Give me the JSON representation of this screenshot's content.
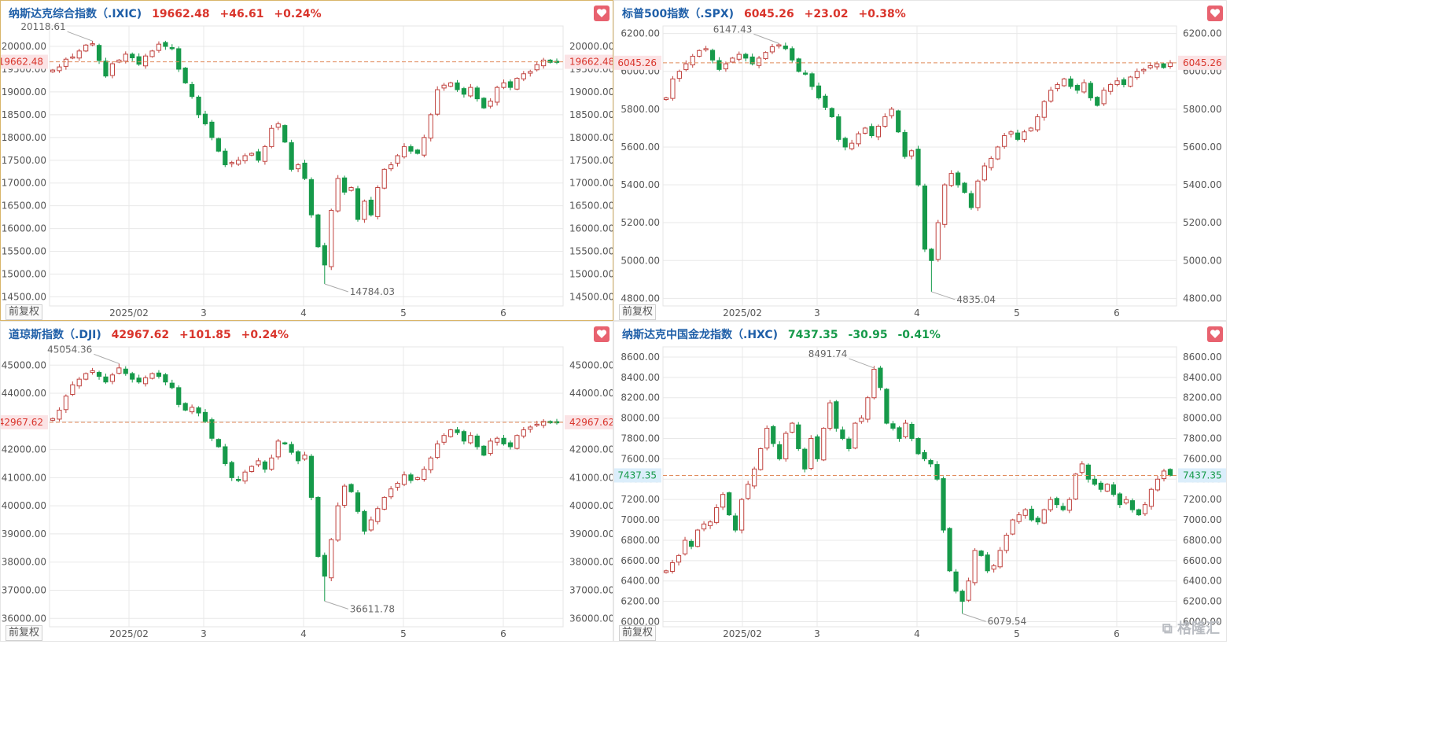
{
  "colors": {
    "up": "#c0423e",
    "down": "#169a4a",
    "ref": "#e08a5a",
    "grid": "#e8e8e8",
    "axis_text": "#555555",
    "up_label_bg": "#fbe3e5",
    "down_label_bg": "#dbeefb"
  },
  "watermark": "格隆汇",
  "adjust_label": "前复权",
  "panels": [
    {
      "id": "ixic",
      "name": "纳斯达克综合指数（.IXIC)",
      "price": "19662.48",
      "change": "+46.61",
      "pct": "+0.24%",
      "direction": "up",
      "last_label": "19662.48",
      "high_label": "20118.61",
      "low_label": "14784.03",
      "chart_data": {
        "type": "candlestick",
        "y_ticks": [
          "20000.00",
          "19500.00",
          "19000.00",
          "18500.00",
          "18000.00",
          "17500.00",
          "17000.00",
          "16500.00",
          "16000.00",
          "15500.00",
          "15000.00",
          "14500.00"
        ],
        "x_ticks": [
          "2025/02",
          "3",
          "4",
          "5",
          "6"
        ],
        "ylim": [
          14300,
          20450
        ],
        "last": 19662.48,
        "high": 20118.61,
        "low": 14784.03,
        "closes": [
          19480,
          19550,
          19720,
          19770,
          19900,
          20030,
          20060,
          19690,
          19350,
          19620,
          19700,
          19830,
          19750,
          19610,
          19790,
          19900,
          20050,
          20000,
          19950,
          19500,
          19200,
          18900,
          18500,
          18300,
          18000,
          17700,
          17400,
          17450,
          17500,
          17600,
          17650,
          17500,
          17800,
          18200,
          18300,
          17900,
          17300,
          17400,
          17100,
          16300,
          15600,
          15200,
          16400,
          17100,
          16800,
          16900,
          16200,
          16600,
          16300,
          16900,
          17300,
          17400,
          17600,
          17800,
          17700,
          17650,
          18000,
          18500,
          19050,
          19150,
          19200,
          19050,
          18950,
          19100,
          18850,
          18650,
          18800,
          19100,
          19200,
          19100,
          19300,
          19400,
          19450,
          19600,
          19700,
          19650,
          19662
        ]
      }
    },
    {
      "id": "spx",
      "name": "标普500指数（.SPX)",
      "price": "6045.26",
      "change": "+23.02",
      "pct": "+0.38%",
      "direction": "up",
      "last_label": "6045.26",
      "high_label": "6147.43",
      "low_label": "4835.04",
      "chart_data": {
        "type": "candlestick",
        "y_ticks": [
          "6200.00",
          "6000.00",
          "5800.00",
          "5600.00",
          "5400.00",
          "5200.00",
          "5000.00",
          "4800.00"
        ],
        "x_ticks": [
          "2025/02",
          "3",
          "4",
          "5",
          "6"
        ],
        "ylim": [
          4760,
          6240
        ],
        "last": 6045.26,
        "high": 6147.43,
        "low": 4835.04,
        "closes": [
          5860,
          5960,
          6000,
          6040,
          6080,
          6110,
          6120,
          6060,
          6010,
          6040,
          6070,
          6090,
          6070,
          6040,
          6070,
          6100,
          6130,
          6140,
          6120,
          6060,
          6000,
          5990,
          5920,
          5860,
          5810,
          5760,
          5640,
          5600,
          5620,
          5670,
          5700,
          5660,
          5710,
          5760,
          5800,
          5680,
          5550,
          5580,
          5400,
          5060,
          5000,
          5200,
          5400,
          5460,
          5400,
          5360,
          5280,
          5420,
          5500,
          5540,
          5600,
          5660,
          5680,
          5640,
          5680,
          5700,
          5760,
          5840,
          5900,
          5930,
          5960,
          5920,
          5900,
          5940,
          5860,
          5820,
          5900,
          5930,
          5950,
          5930,
          5970,
          6000,
          6010,
          6030,
          6040,
          6020,
          6045
        ]
      }
    },
    {
      "id": "dji",
      "name": "道琼斯指数（.DJI)",
      "price": "42967.62",
      "change": "+101.85",
      "pct": "+0.24%",
      "direction": "up",
      "last_label": "42967.62",
      "high_label": "45054.36",
      "low_label": "36611.78",
      "chart_data": {
        "type": "candlestick",
        "y_ticks": [
          "45000.00",
          "44000.00",
          "43000.00",
          "42000.00",
          "41000.00",
          "40000.00",
          "39000.00",
          "38000.00",
          "37000.00",
          "36000.00"
        ],
        "x_ticks": [
          "2025/02",
          "3",
          "4",
          "5",
          "6"
        ],
        "ylim": [
          35700,
          45650
        ],
        "last": 42967.62,
        "high": 45054.36,
        "low": 36611.78,
        "closes": [
          43100,
          43400,
          43900,
          44300,
          44500,
          44700,
          44800,
          44600,
          44400,
          44650,
          44900,
          44700,
          44500,
          44400,
          44550,
          44700,
          44600,
          44400,
          44200,
          43600,
          43400,
          43500,
          43300,
          43000,
          42400,
          42100,
          41500,
          41000,
          40900,
          41200,
          41400,
          41600,
          41300,
          41700,
          42300,
          42200,
          41900,
          41600,
          41800,
          40300,
          38200,
          37500,
          38800,
          40000,
          40700,
          40500,
          39800,
          39100,
          39500,
          39900,
          40300,
          40600,
          40800,
          41100,
          40900,
          41000,
          41300,
          41700,
          42200,
          42500,
          42700,
          42600,
          42300,
          42500,
          42100,
          41800,
          42300,
          42400,
          42200,
          42100,
          42500,
          42700,
          42800,
          42900,
          43000,
          42950,
          42967
        ]
      }
    },
    {
      "id": "hxc",
      "name": "纳斯达克中国金龙指数（.HXC)",
      "price": "7437.35",
      "change": "-30.95",
      "pct": "-0.41%",
      "direction": "down",
      "last_label": "7437.35",
      "high_label": "8491.74",
      "low_label": "6079.54",
      "chart_data": {
        "type": "candlestick",
        "y_ticks": [
          "8600.00",
          "8400.00",
          "8200.00",
          "8000.00",
          "7800.00",
          "7600.00",
          "7400.00",
          "7200.00",
          "7000.00",
          "6800.00",
          "6600.00",
          "6400.00",
          "6200.00",
          "6000.00"
        ],
        "x_ticks": [
          "2025/02",
          "3",
          "4",
          "5",
          "6"
        ],
        "ylim": [
          5950,
          8700
        ],
        "last": 7437.35,
        "high": 8491.74,
        "low": 6079.54,
        "closes": [
          6500,
          6580,
          6650,
          6800,
          6740,
          6900,
          6960,
          6980,
          7120,
          7250,
          7050,
          6900,
          7200,
          7350,
          7500,
          7700,
          7900,
          7750,
          7600,
          7850,
          7950,
          7700,
          7500,
          7800,
          7600,
          7900,
          8150,
          7900,
          7800,
          7700,
          7950,
          8000,
          8200,
          8480,
          8300,
          7950,
          7900,
          7800,
          7950,
          7800,
          7650,
          7600,
          7550,
          7400,
          6900,
          6500,
          6300,
          6200,
          6400,
          6700,
          6650,
          6500,
          6550,
          6700,
          6850,
          7000,
          7050,
          7100,
          7000,
          6980,
          7100,
          7200,
          7150,
          7100,
          7200,
          7450,
          7550,
          7400,
          7350,
          7300,
          7350,
          7250,
          7150,
          7200,
          7100,
          7050,
          7150,
          7300,
          7400,
          7480,
          7437
        ]
      }
    }
  ]
}
